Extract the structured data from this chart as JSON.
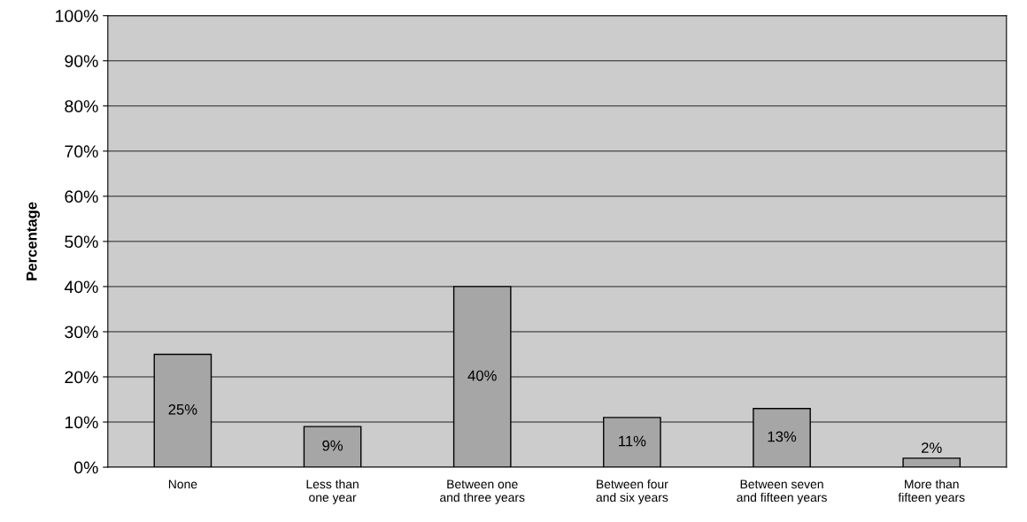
{
  "chart_data": {
    "type": "bar",
    "ylabel": "Percentage",
    "categories": [
      "None",
      "Less than\none year",
      "Between one\nand three years",
      "Between four\nand six years",
      "Between seven\nand fifteen years",
      "More than\nfifteen years"
    ],
    "values": [
      25,
      9,
      40,
      11,
      13,
      2
    ],
    "value_labels": [
      "25%",
      "9%",
      "40%",
      "11%",
      "13%",
      "2%"
    ],
    "color": "#a6a6a6",
    "ylim": [
      0,
      100
    ],
    "yticks": [
      {
        "value": 0,
        "label": "0%"
      },
      {
        "value": 10,
        "label": "10%"
      },
      {
        "value": 20,
        "label": "20%"
      },
      {
        "value": 30,
        "label": "30%"
      },
      {
        "value": 40,
        "label": "40%"
      },
      {
        "value": 50,
        "label": "50%"
      },
      {
        "value": 60,
        "label": "60%"
      },
      {
        "value": 70,
        "label": "70%"
      },
      {
        "value": 80,
        "label": "80%"
      },
      {
        "value": 90,
        "label": "90%"
      },
      {
        "value": 100,
        "label": "100%"
      }
    ],
    "grid": "y"
  }
}
